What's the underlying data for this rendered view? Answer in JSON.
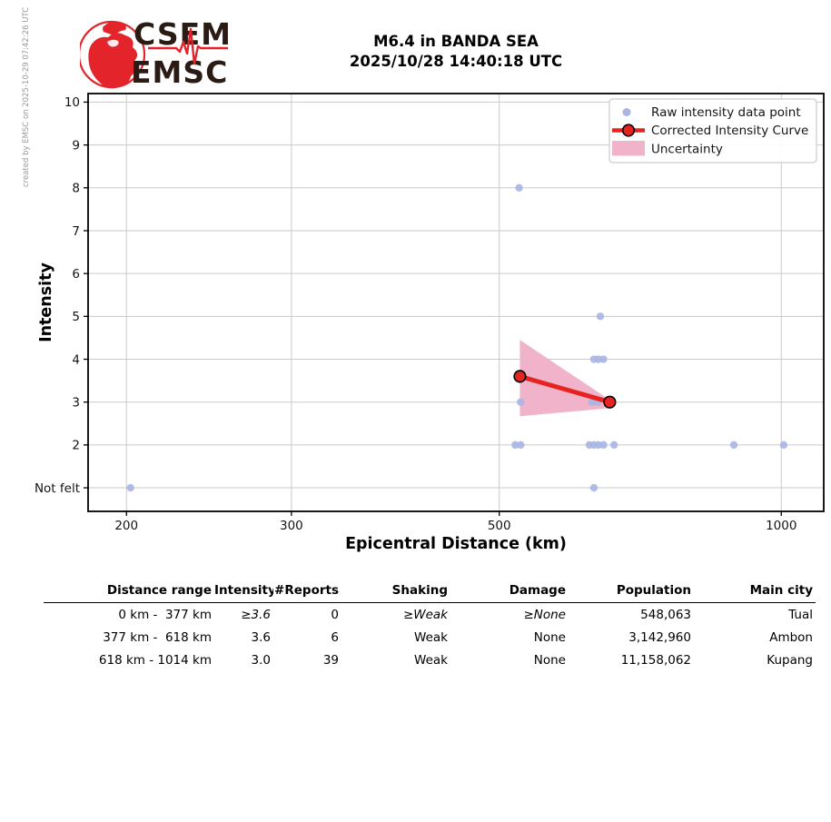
{
  "credit": "created by EMSC on 2025-10-29 07:42:26 UTC",
  "logo": {
    "line1": "CSEM",
    "line2": "EMSC"
  },
  "chart_data": {
    "type": "scatter",
    "title": "M6.4 in BANDA SEA",
    "subtitle": "2025/10/28 14:40:18 UTC",
    "xlabel": "Epicentral Distance (km)",
    "ylabel": "Intensity",
    "x_scale": "log",
    "xlim": [
      182,
      1110
    ],
    "ylim": [
      0.45,
      10.2
    ],
    "grid": true,
    "legend_position": "upper right",
    "x_axis": {
      "ticks": [
        {
          "v": 200,
          "label": "200"
        },
        {
          "v": 300,
          "label": "300"
        },
        {
          "v": 500,
          "label": "500"
        },
        {
          "v": 1000,
          "label": "1000"
        }
      ]
    },
    "y_axis": {
      "ticks": [
        {
          "v": 10,
          "label": "10"
        },
        {
          "v": 9,
          "label": "9"
        },
        {
          "v": 8,
          "label": "8"
        },
        {
          "v": 7,
          "label": "7"
        },
        {
          "v": 6,
          "label": "6"
        },
        {
          "v": 5,
          "label": "5"
        },
        {
          "v": 4,
          "label": "4"
        },
        {
          "v": 3,
          "label": "3"
        },
        {
          "v": 2,
          "label": "2"
        },
        {
          "v": 1,
          "label": "Not felt"
        }
      ]
    },
    "legend": [
      "Raw intensity data point",
      "Corrected Intensity Curve",
      "Uncertainty"
    ],
    "colors": {
      "raw": "#a9b5e3",
      "curve": "#e62320",
      "band": "#f0b3c9"
    },
    "raw_points": [
      {
        "d": 525,
        "i": 8
      },
      {
        "d": 641,
        "i": 5
      },
      {
        "d": 631,
        "i": 4
      },
      {
        "d": 638,
        "i": 4
      },
      {
        "d": 646,
        "i": 4
      },
      {
        "d": 527,
        "i": 3
      },
      {
        "d": 628,
        "i": 3
      },
      {
        "d": 637,
        "i": 3
      },
      {
        "d": 520,
        "i": 2
      },
      {
        "d": 527,
        "i": 2
      },
      {
        "d": 624,
        "i": 2
      },
      {
        "d": 631,
        "i": 2
      },
      {
        "d": 638,
        "i": 2
      },
      {
        "d": 646,
        "i": 2
      },
      {
        "d": 663,
        "i": 2
      },
      {
        "d": 890,
        "i": 2
      },
      {
        "d": 1006,
        "i": 2
      },
      {
        "d": 202,
        "i": 1
      },
      {
        "d": 631,
        "i": 1
      }
    ],
    "corrected_curve": [
      {
        "d": 526,
        "i": 3.6
      },
      {
        "d": 656,
        "i": 3.0
      }
    ],
    "uncertainty_band": [
      {
        "d": 526,
        "lo": 2.67,
        "hi": 4.45
      },
      {
        "d": 656,
        "lo": 2.86,
        "hi": 3.05
      }
    ]
  },
  "table": {
    "headers": [
      "Distance range",
      "Intensity",
      "#Reports",
      "Shaking",
      "Damage",
      "Population",
      "Main city"
    ],
    "rows": [
      {
        "cells": [
          "0 km -  377 km",
          "≥3.6",
          "0",
          "≥Weak",
          "≥None",
          "548,063",
          "Tual"
        ]
      },
      {
        "cells": [
          "377 km -  618 km",
          "3.6",
          "6",
          "Weak",
          "None",
          "3,142,960",
          "Ambon"
        ]
      },
      {
        "cells": [
          "618 km - 1014 km",
          "3.0",
          "39",
          "Weak",
          "None",
          "11,158,062",
          "Kupang"
        ]
      }
    ]
  }
}
